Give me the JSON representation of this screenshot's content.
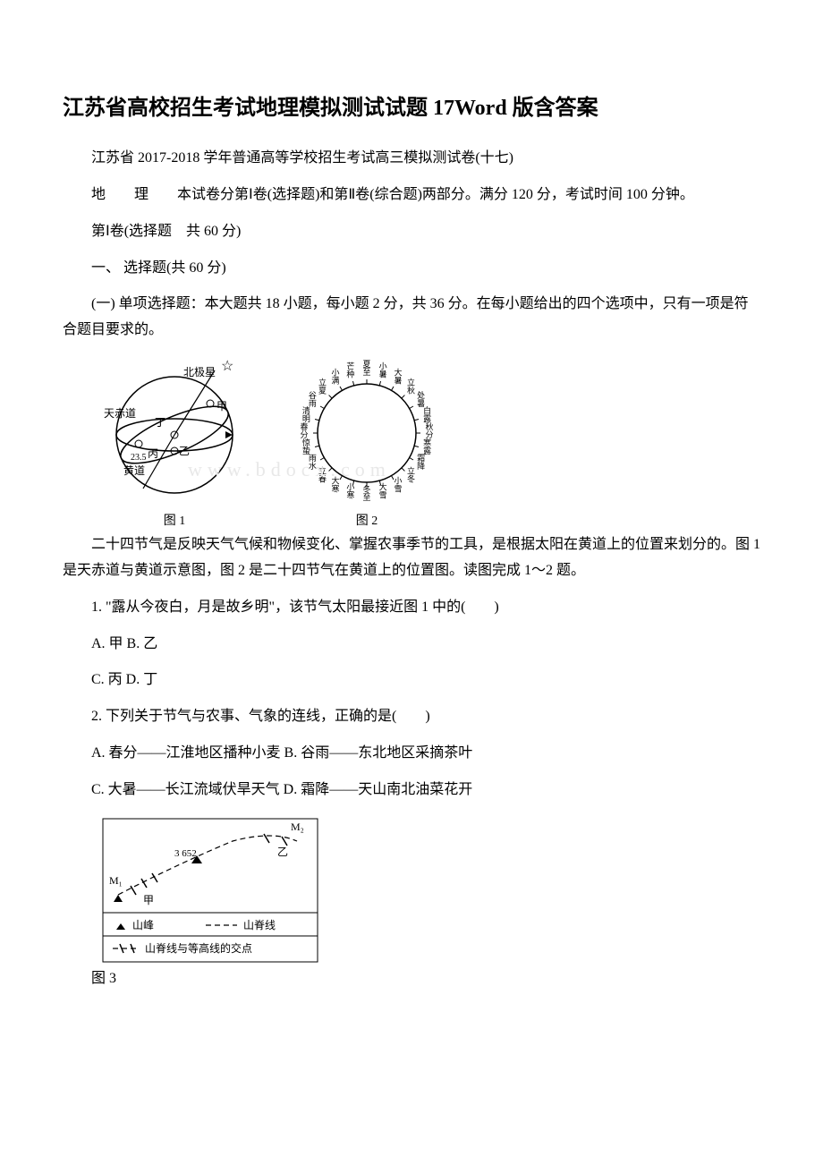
{
  "title": "江苏省高校招生考试地理模拟测试试题 17Word 版含答案",
  "intro1": "江苏省 2017-2018 学年普通高等学校招生考试高三模拟测试卷(十七)",
  "subject_prefix": "地　　理",
  "intro2_rest": "　　本试卷分第Ⅰ卷(选择题)和第Ⅱ卷(综合题)两部分。满分 120 分，考试时间 100 分钟。",
  "section1": "第Ⅰ卷(选择题　共 60 分)",
  "section2": "一、 选择题(共 60 分)",
  "section3": "(一) 单项选择题：本大题共 18 小题，每小题 2 分，共 36 分。在每小题给出的四个选项中，只有一项是符合题目要求的。",
  "fig1": {
    "caption": "图 1",
    "labels": {
      "polaris": "北极星",
      "equator": "天赤道",
      "ecliptic": "黄道",
      "jia": "甲",
      "yi": "乙",
      "bing": "丙",
      "ding": "丁",
      "angle": "23.5"
    }
  },
  "fig2": {
    "caption": "图 2",
    "terms": [
      "春分",
      "清明",
      "谷雨",
      "立夏",
      "小满",
      "芒种",
      "夏至",
      "小暑",
      "大暑",
      "立秋",
      "处暑",
      "白露",
      "秋分",
      "寒露",
      "霜降",
      "立冬",
      "小雪",
      "大雪",
      "冬至",
      "小寒",
      "大寒",
      "立春",
      "雨水",
      "惊蛰"
    ]
  },
  "passage1": "二十四节气是反映天气气候和物候变化、掌握农事季节的工具，是根据太阳在黄道上的位置来划分的。图 1 是天赤道与黄道示意图，图 2 是二十四节气在黄道上的位置图。读图完成 1～2 题。",
  "q1": {
    "stem": "1. \"露从今夜白，月是故乡明\"，该节气太阳最接近图 1 中的(　　)",
    "optAB": "A. 甲 B. 乙",
    "optCD": "C. 丙 D. 丁"
  },
  "q2": {
    "stem": "2. 下列关于节气与农事、气象的连线，正确的是(　　)",
    "optAB": "A. 春分——江淮地区播种小麦 B. 谷雨——东北地区采摘茶叶",
    "optCD": "C. 大暑——长江流域伏旱天气 D. 霜降——天山南北油菜花开"
  },
  "fig3": {
    "caption": "图 3",
    "labels": {
      "m1": "M₁",
      "m2": "M₂",
      "jia": "甲",
      "yi": "乙",
      "elev": "3 652",
      "legend_peak": "山峰",
      "legend_ridge": "山脊线",
      "legend_intersect": "山脊线与等高线的交点"
    },
    "colors": {
      "line": "#000000",
      "bg": "#ffffff"
    }
  },
  "watermark": "www.bdocx.com"
}
